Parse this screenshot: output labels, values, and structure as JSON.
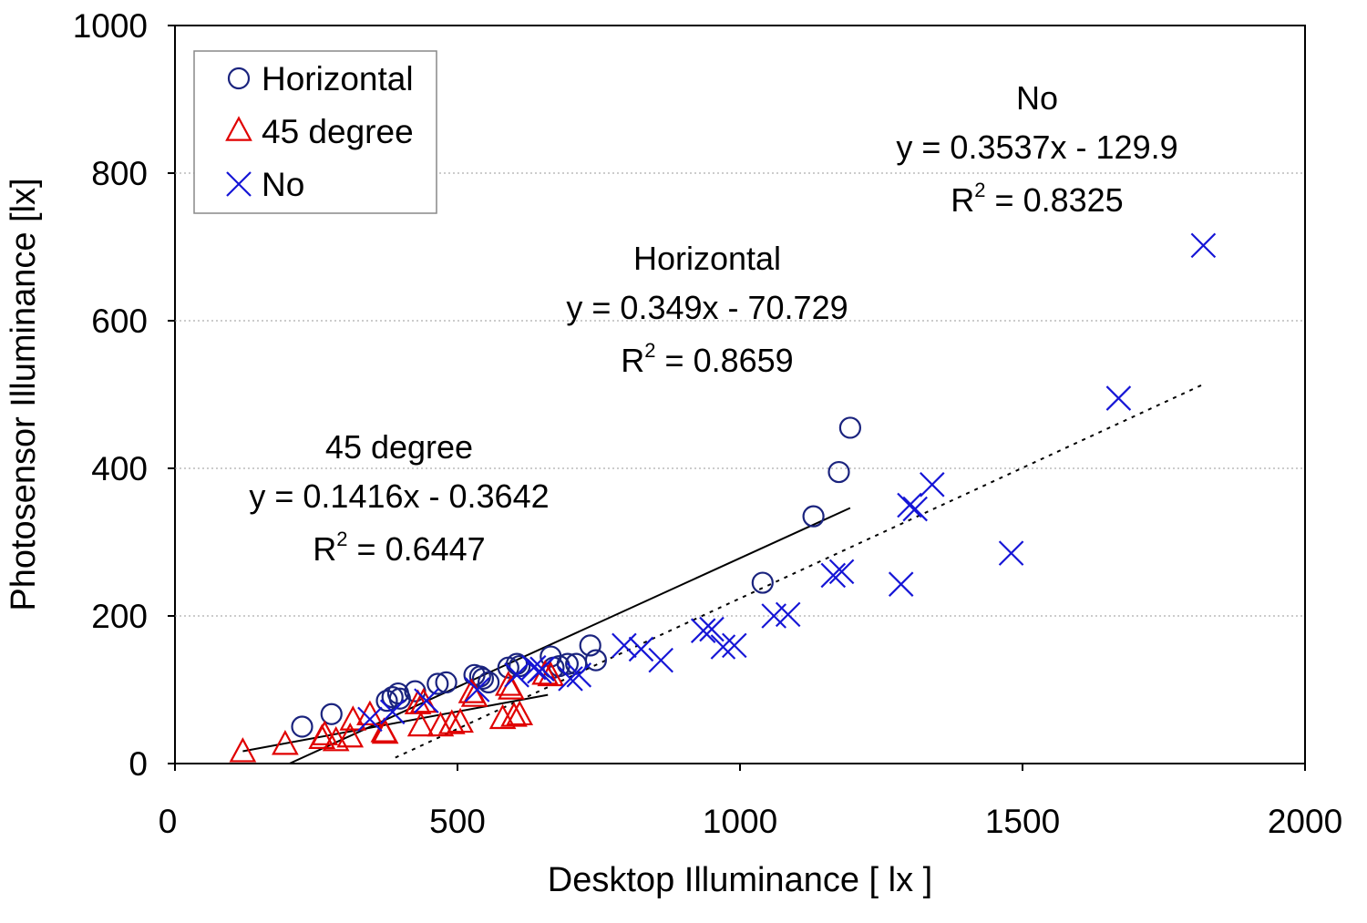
{
  "chart_data": {
    "type": "scatter",
    "xlabel": "Desktop Illuminance [ lx ]",
    "ylabel": "Photosensor Illuminance [lx]",
    "xlim": [
      0,
      2000
    ],
    "ylim": [
      0,
      1000
    ],
    "xticks": [
      "0",
      "500",
      "1000",
      "1500",
      "2000"
    ],
    "yticks": [
      "0",
      "200",
      "400",
      "600",
      "800",
      "1000"
    ],
    "grid": "horizontal dotted",
    "legend_position": "top-left",
    "series": [
      {
        "name": "Horizontal",
        "marker": "circle",
        "color": "#1a237e",
        "points": [
          [
            225,
            50
          ],
          [
            277,
            67
          ],
          [
            375,
            85
          ],
          [
            385,
            90
          ],
          [
            395,
            95
          ],
          [
            398,
            88
          ],
          [
            425,
            98
          ],
          [
            465,
            108
          ],
          [
            480,
            110
          ],
          [
            530,
            120
          ],
          [
            540,
            118
          ],
          [
            545,
            115
          ],
          [
            555,
            110
          ],
          [
            590,
            130
          ],
          [
            605,
            135
          ],
          [
            610,
            132
          ],
          [
            665,
            145
          ],
          [
            670,
            130
          ],
          [
            680,
            132
          ],
          [
            695,
            135
          ],
          [
            710,
            135
          ],
          [
            735,
            160
          ],
          [
            745,
            140
          ],
          [
            1040,
            245
          ],
          [
            1130,
            335
          ],
          [
            1175,
            395
          ],
          [
            1195,
            455
          ]
        ],
        "trendline": {
          "x_range": [
            120,
            1195
          ],
          "slope": 0.349,
          "intercept": -70.729,
          "label_name": "Horizontal",
          "equation": "y = 0.349x - 70.729",
          "r2_label": "R",
          "r2_sup": "2",
          "r2_value": " = 0.8659"
        }
      },
      {
        "name": "45 degree",
        "marker": "triangle",
        "color": "#e00000",
        "points": [
          [
            120,
            15
          ],
          [
            195,
            25
          ],
          [
            260,
            33
          ],
          [
            265,
            38
          ],
          [
            285,
            30
          ],
          [
            310,
            35
          ],
          [
            315,
            58
          ],
          [
            345,
            65
          ],
          [
            370,
            42
          ],
          [
            372,
            40
          ],
          [
            430,
            80
          ],
          [
            435,
            50
          ],
          [
            440,
            82
          ],
          [
            470,
            50
          ],
          [
            490,
            53
          ],
          [
            505,
            55
          ],
          [
            525,
            95
          ],
          [
            530,
            90
          ],
          [
            580,
            60
          ],
          [
            590,
            105
          ],
          [
            595,
            100
          ],
          [
            600,
            63
          ],
          [
            610,
            65
          ],
          [
            655,
            120
          ],
          [
            665,
            118
          ]
        ],
        "trendline": {
          "x_range": [
            120,
            660
          ],
          "slope": 0.1416,
          "intercept": -0.3642,
          "label_name": "45 degree",
          "equation": "y = 0.1416x - 0.3642",
          "r2_label": "R",
          "r2_sup": "2",
          "r2_value": " = 0.6447"
        }
      },
      {
        "name": "No",
        "marker": "x",
        "color": "#1515d6",
        "points": [
          [
            345,
            60
          ],
          [
            385,
            70
          ],
          [
            445,
            85
          ],
          [
            535,
            100
          ],
          [
            605,
            120
          ],
          [
            635,
            130
          ],
          [
            645,
            125
          ],
          [
            650,
            128
          ],
          [
            700,
            115
          ],
          [
            715,
            120
          ],
          [
            795,
            160
          ],
          [
            825,
            155
          ],
          [
            860,
            140
          ],
          [
            935,
            180
          ],
          [
            950,
            182
          ],
          [
            970,
            158
          ],
          [
            990,
            160
          ],
          [
            1060,
            200
          ],
          [
            1085,
            202
          ],
          [
            1165,
            255
          ],
          [
            1180,
            260
          ],
          [
            1285,
            243
          ],
          [
            1300,
            350
          ],
          [
            1310,
            345
          ],
          [
            1340,
            378
          ],
          [
            1480,
            285
          ],
          [
            1670,
            495
          ],
          [
            1820,
            702
          ]
        ],
        "trendline": {
          "x_range": [
            390,
            1820
          ],
          "slope": 0.3537,
          "intercept": -129.9,
          "label_name": "No",
          "equation": "y = 0.3537x - 129.9",
          "r2_label": "R",
          "r2_sup": "2",
          "r2_value": " = 0.8325"
        }
      }
    ]
  }
}
